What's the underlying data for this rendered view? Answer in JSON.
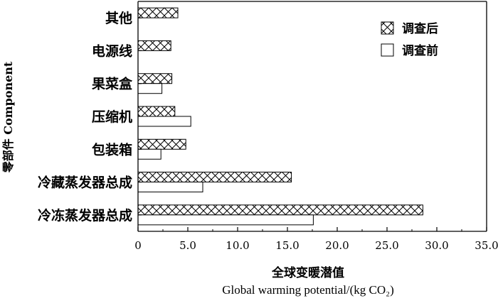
{
  "chart_data": {
    "type": "bar",
    "orientation": "horizontal",
    "categories": [
      "其他",
      "电源线",
      "果菜盒",
      "压缩机",
      "包装箱",
      "冷藏蒸发器总成",
      "冷冻蒸发器总成"
    ],
    "series": [
      {
        "name": "调查后",
        "values": [
          4.0,
          3.3,
          3.4,
          3.7,
          4.8,
          15.4,
          28.6
        ],
        "pattern": "crosshatch"
      },
      {
        "name": "调查前",
        "values": [
          null,
          null,
          2.4,
          5.3,
          2.3,
          6.5,
          17.6
        ],
        "pattern": "none"
      }
    ],
    "xlim": [
      0,
      35.0
    ],
    "xticks": [
      "0",
      "5.0",
      "10.0",
      "15.0",
      "20.0",
      "25.0",
      "30.0",
      "35.0"
    ],
    "xlabel_zh": "全球变暖潜值",
    "xlabel_en": "Global warming potential/(kg CO₂)",
    "ylabel": "零部件 Component",
    "legend_position": "top-right",
    "grid": false
  }
}
